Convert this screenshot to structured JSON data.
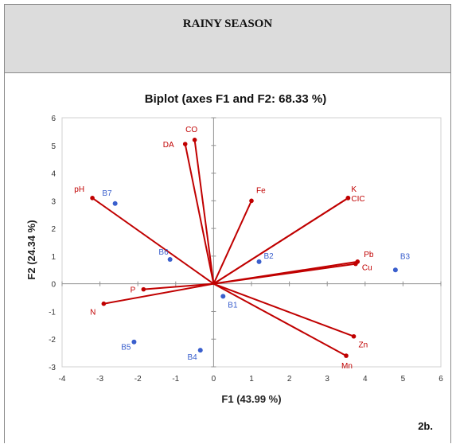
{
  "panel": {
    "header_title": "RAINY SEASON",
    "figure_tag": "2b."
  },
  "chart_data": {
    "type": "scatter",
    "title": "Biplot (axes F1 and F2: 68.33 %)",
    "xlabel": "F1 (43.99 %)",
    "ylabel": "F2 (24.34 %)",
    "xlim": [
      -4,
      6
    ],
    "ylim": [
      -3,
      6
    ],
    "xticks": [
      -4,
      -3,
      -2,
      -1,
      0,
      1,
      2,
      3,
      4,
      5,
      6
    ],
    "yticks": [
      -3,
      -2,
      -1,
      0,
      1,
      2,
      3,
      4,
      5,
      6
    ],
    "grid": false,
    "colors": {
      "observations": "#3a5fcd",
      "variables": "#c00000",
      "frame": "#d0d0d0",
      "axes": "#909090"
    },
    "observations": [
      {
        "label": "B1",
        "x": 0.25,
        "y": -0.45
      },
      {
        "label": "B2",
        "x": 1.2,
        "y": 0.8
      },
      {
        "label": "B3",
        "x": 4.8,
        "y": 0.5
      },
      {
        "label": "B4",
        "x": -0.35,
        "y": -2.4
      },
      {
        "label": "B5",
        "x": -2.1,
        "y": -2.1
      },
      {
        "label": "B6",
        "x": -1.15,
        "y": 0.88
      },
      {
        "label": "B7",
        "x": -2.6,
        "y": 2.9
      }
    ],
    "variables": [
      {
        "label": "CO",
        "x": -0.5,
        "y": 5.2
      },
      {
        "label": "DA",
        "x": -0.75,
        "y": 5.05
      },
      {
        "label": "pH",
        "x": -3.2,
        "y": 3.1
      },
      {
        "label": "Fe",
        "x": 1.0,
        "y": 3.0
      },
      {
        "label": "K",
        "x": 3.55,
        "y": 3.1
      },
      {
        "label": "CIC",
        "x": 3.55,
        "y": 3.1
      },
      {
        "label": "Pb",
        "x": 3.8,
        "y": 0.8
      },
      {
        "label": "Cu",
        "x": 3.75,
        "y": 0.72
      },
      {
        "label": "P",
        "x": -1.85,
        "y": -0.2
      },
      {
        "label": "N",
        "x": -2.9,
        "y": -0.72
      },
      {
        "label": "Zn",
        "x": 3.7,
        "y": -1.9
      },
      {
        "label": "Mn",
        "x": 3.5,
        "y": -2.6
      }
    ]
  }
}
